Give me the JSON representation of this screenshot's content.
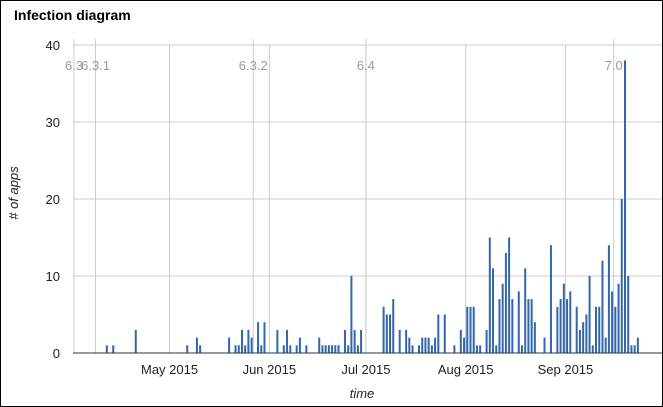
{
  "chart_data": {
    "type": "bar",
    "title": "Infection diagram",
    "xlabel": "time",
    "ylabel": "# of apps",
    "ylim": [
      0,
      40
    ],
    "yticks": [
      0,
      10,
      20,
      30,
      40
    ],
    "xlim": [
      "2015-04-01",
      "2015-10-01"
    ],
    "xticks": [
      {
        "label": "May 2015",
        "date": "2015-05-01"
      },
      {
        "label": "Jun 2015",
        "date": "2015-06-01"
      },
      {
        "label": "Jul 2015",
        "date": "2015-07-01"
      },
      {
        "label": "Aug 2015",
        "date": "2015-08-01"
      },
      {
        "label": "Sep 2015",
        "date": "2015-09-01"
      }
    ],
    "version_markers": [
      {
        "label": "6.3",
        "date": "2015-04-01"
      },
      {
        "label": "6.3.1",
        "date": "2015-04-08"
      },
      {
        "label": "6.3.2",
        "date": "2015-05-27"
      },
      {
        "label": "6.4",
        "date": "2015-07-01"
      },
      {
        "label": "7.0",
        "date": "2015-09-16"
      }
    ],
    "grid": true,
    "legend": "none",
    "series": [
      {
        "color": "#3366aa",
        "points": [
          [
            "2015-04-11",
            1
          ],
          [
            "2015-04-13",
            1
          ],
          [
            "2015-04-20",
            3
          ],
          [
            "2015-05-06",
            1
          ],
          [
            "2015-05-09",
            2
          ],
          [
            "2015-05-10",
            1
          ],
          [
            "2015-05-19",
            2
          ],
          [
            "2015-05-21",
            1
          ],
          [
            "2015-05-22",
            1
          ],
          [
            "2015-05-23",
            3
          ],
          [
            "2015-05-24",
            1
          ],
          [
            "2015-05-25",
            3
          ],
          [
            "2015-05-26",
            2
          ],
          [
            "2015-05-28",
            4
          ],
          [
            "2015-05-29",
            1
          ],
          [
            "2015-05-30",
            4
          ],
          [
            "2015-06-03",
            3
          ],
          [
            "2015-06-05",
            1
          ],
          [
            "2015-06-06",
            3
          ],
          [
            "2015-06-07",
            1
          ],
          [
            "2015-06-09",
            1
          ],
          [
            "2015-06-10",
            2
          ],
          [
            "2015-06-12",
            1
          ],
          [
            "2015-06-16",
            2
          ],
          [
            "2015-06-17",
            1
          ],
          [
            "2015-06-18",
            1
          ],
          [
            "2015-06-19",
            1
          ],
          [
            "2015-06-20",
            1
          ],
          [
            "2015-06-21",
            1
          ],
          [
            "2015-06-22",
            1
          ],
          [
            "2015-06-24",
            3
          ],
          [
            "2015-06-25",
            1
          ],
          [
            "2015-06-26",
            10
          ],
          [
            "2015-06-27",
            3
          ],
          [
            "2015-06-28",
            1
          ],
          [
            "2015-06-29",
            3
          ],
          [
            "2015-07-06",
            6
          ],
          [
            "2015-07-07",
            5
          ],
          [
            "2015-07-08",
            5
          ],
          [
            "2015-07-09",
            7
          ],
          [
            "2015-07-11",
            3
          ],
          [
            "2015-07-13",
            3
          ],
          [
            "2015-07-14",
            2
          ],
          [
            "2015-07-15",
            1
          ],
          [
            "2015-07-17",
            1
          ],
          [
            "2015-07-18",
            2
          ],
          [
            "2015-07-19",
            2
          ],
          [
            "2015-07-20",
            2
          ],
          [
            "2015-07-21",
            1
          ],
          [
            "2015-07-22",
            2
          ],
          [
            "2015-07-23",
            5
          ],
          [
            "2015-07-25",
            5
          ],
          [
            "2015-07-28",
            1
          ],
          [
            "2015-07-30",
            3
          ],
          [
            "2015-07-31",
            2
          ],
          [
            "2015-08-01",
            6
          ],
          [
            "2015-08-02",
            6
          ],
          [
            "2015-08-03",
            6
          ],
          [
            "2015-08-04",
            1
          ],
          [
            "2015-08-05",
            1
          ],
          [
            "2015-08-07",
            3
          ],
          [
            "2015-08-08",
            15
          ],
          [
            "2015-08-09",
            11
          ],
          [
            "2015-08-10",
            1
          ],
          [
            "2015-08-11",
            7
          ],
          [
            "2015-08-12",
            9
          ],
          [
            "2015-08-13",
            13
          ],
          [
            "2015-08-14",
            15
          ],
          [
            "2015-08-15",
            7
          ],
          [
            "2015-08-17",
            8
          ],
          [
            "2015-08-18",
            1
          ],
          [
            "2015-08-19",
            11
          ],
          [
            "2015-08-20",
            7
          ],
          [
            "2015-08-21",
            7
          ],
          [
            "2015-08-22",
            4
          ],
          [
            "2015-08-25",
            2
          ],
          [
            "2015-08-27",
            14
          ],
          [
            "2015-08-29",
            6
          ],
          [
            "2015-08-30",
            7
          ],
          [
            "2015-08-31",
            9
          ],
          [
            "2015-09-01",
            7
          ],
          [
            "2015-09-02",
            8
          ],
          [
            "2015-09-04",
            6
          ],
          [
            "2015-09-05",
            3
          ],
          [
            "2015-09-06",
            4
          ],
          [
            "2015-09-07",
            5
          ],
          [
            "2015-09-08",
            10
          ],
          [
            "2015-09-09",
            1
          ],
          [
            "2015-09-10",
            6
          ],
          [
            "2015-09-11",
            6
          ],
          [
            "2015-09-12",
            12
          ],
          [
            "2015-09-13",
            2
          ],
          [
            "2015-09-14",
            14
          ],
          [
            "2015-09-15",
            8
          ],
          [
            "2015-09-16",
            6
          ],
          [
            "2015-09-17",
            9
          ],
          [
            "2015-09-18",
            20
          ],
          [
            "2015-09-19",
            38
          ],
          [
            "2015-09-20",
            10
          ],
          [
            "2015-09-21",
            1
          ],
          [
            "2015-09-22",
            1
          ],
          [
            "2015-09-23",
            2
          ]
        ]
      }
    ]
  }
}
